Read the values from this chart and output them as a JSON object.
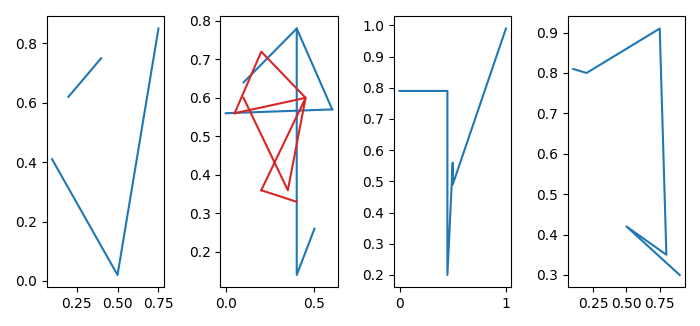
{
  "subplot1": {
    "segments": [
      {
        "x": [
          0.1,
          0.5,
          0.75
        ],
        "y": [
          0.41,
          0.02,
          0.85
        ]
      },
      {
        "x": [
          0.2,
          0.4
        ],
        "y": [
          0.62,
          0.75
        ]
      }
    ],
    "color": "#1f77b4"
  },
  "subplot2": {
    "blue_lines": [
      {
        "x": [
          0.1,
          0.4,
          0.6
        ],
        "y": [
          0.64,
          0.78,
          0.57
        ]
      },
      {
        "x": [
          0.0,
          0.6
        ],
        "y": [
          0.56,
          0.57
        ]
      },
      {
        "x": [
          0.4,
          0.4,
          0.5
        ],
        "y": [
          0.78,
          0.14,
          0.26
        ]
      }
    ],
    "red_lines": [
      {
        "x": [
          0.05,
          0.2,
          0.45,
          0.05
        ],
        "y": [
          0.56,
          0.72,
          0.6,
          0.56
        ]
      },
      {
        "x": [
          0.1,
          0.35,
          0.45,
          0.2
        ],
        "y": [
          0.6,
          0.36,
          0.6,
          0.36
        ]
      },
      {
        "x": [
          0.2,
          0.4
        ],
        "y": [
          0.36,
          0.33
        ]
      }
    ],
    "blue_color": "#1f77b4",
    "red_color": "#d62728"
  },
  "subplot3": {
    "blue_x": [
      0.0,
      0.45,
      0.45,
      0.5,
      0.5,
      1.0
    ],
    "blue_y": [
      0.79,
      0.79,
      0.2,
      0.56,
      0.49,
      0.99
    ],
    "color": "#1f77b4"
  },
  "subplot4": {
    "blue_x": [
      0.1,
      0.2,
      0.75,
      0.8,
      0.5,
      0.9
    ],
    "blue_y": [
      0.81,
      0.8,
      0.91,
      0.35,
      0.42,
      0.3
    ],
    "color": "#1f77b4"
  },
  "figsize": [
    7.0,
    3.26
  ],
  "dpi": 100
}
